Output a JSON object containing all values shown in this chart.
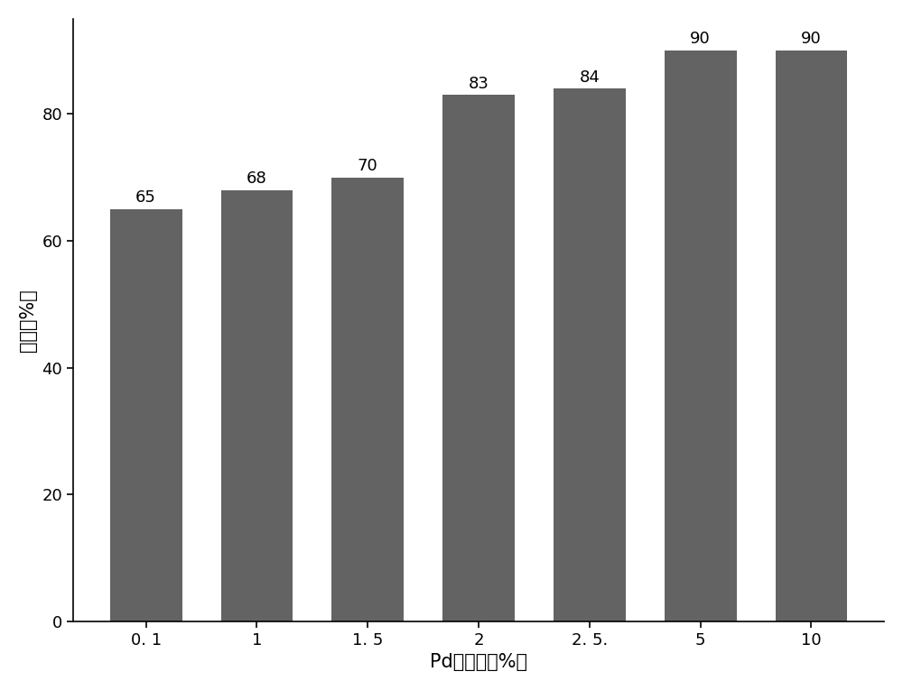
{
  "categories": [
    "0. 1",
    "1",
    "1. 5",
    "2",
    "2. 5.",
    "5",
    "10"
  ],
  "values": [
    65,
    68,
    70,
    83,
    84,
    90,
    90
  ],
  "bar_color": "#636363",
  "xlabel": "Pd负载量（%）",
  "ylabel": "产率（%）",
  "ylim": [
    0,
    95
  ],
  "yticks": [
    0,
    20,
    40,
    60,
    80
  ],
  "label_fontsize": 15,
  "tick_fontsize": 13,
  "bar_label_fontsize": 13,
  "background_color": "#ffffff",
  "edge_color": "none",
  "bar_width": 0.65
}
